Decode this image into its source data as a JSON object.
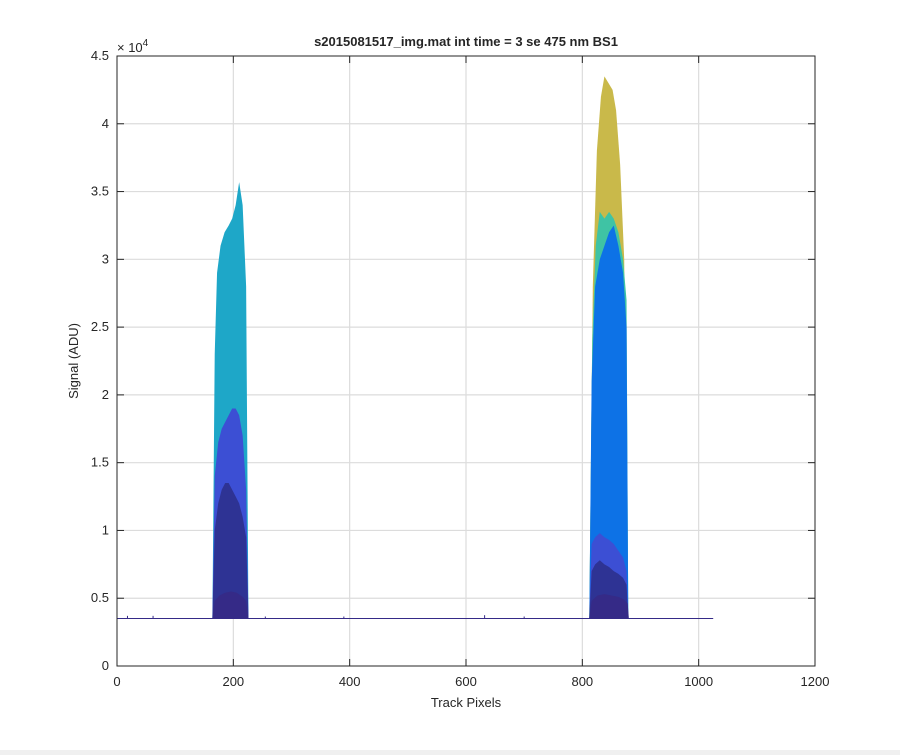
{
  "chart_data": {
    "type": "area",
    "title": "s2015081517_img.mat int time = 3 se  475 nm BS1",
    "xlabel": "Track Pixels",
    "ylabel": "Signal (ADU)",
    "xlim": [
      0,
      1200
    ],
    "ylim": [
      0,
      45000
    ],
    "xticks": [
      0,
      200,
      400,
      600,
      800,
      1000,
      1200
    ],
    "xtick_labels": [
      "0",
      "200",
      "400",
      "600",
      "800",
      "1000",
      "1200"
    ],
    "yticks": [
      0,
      5000,
      10000,
      15000,
      20000,
      25000,
      30000,
      35000,
      40000,
      45000
    ],
    "ytick_labels": [
      "0",
      "0.5",
      "1",
      "1.5",
      "2",
      "2.5",
      "3",
      "3.5",
      "4",
      "4.5"
    ],
    "y_multiplier": "× 10",
    "y_multiplier_exp": "4",
    "grid": true,
    "baseline": 3500,
    "baseline_x": [
      0,
      1025
    ],
    "series": [
      {
        "color": "#c9b94a",
        "peaks": [
          {
            "x": [
              812,
              818,
              825,
              832,
              838,
              845,
              852,
              858,
              865,
              872,
              878
            ],
            "y": [
              3500,
              28000,
              38000,
              42000,
              43500,
              43000,
              42500,
              41000,
              37000,
              30000,
              3500
            ]
          }
        ]
      },
      {
        "color": "#3fc3a4",
        "peaks": [
          {
            "x": [
              812,
              817,
              823,
              830,
              838,
              846,
              854,
              862,
              870,
              876,
              879
            ],
            "y": [
              3500,
              24000,
              31000,
              33500,
              33000,
              33500,
              33000,
              32000,
              30000,
              27000,
              3500
            ]
          }
        ]
      },
      {
        "color": "#1ea7c8",
        "peaks": [
          {
            "x": [
              164,
              168,
              172,
              178,
              185,
              192,
              198,
              204,
              210,
              216,
              222,
              226
            ],
            "y": [
              3500,
              23000,
              29000,
              31000,
              32000,
              32500,
              33000,
              34000,
              35700,
              34000,
              28000,
              3500
            ]
          }
        ]
      },
      {
        "color": "#0d72e6",
        "peaks": [
          {
            "x": [
              812,
              816,
              822,
              830,
              838,
              846,
              854,
              862,
              870,
              876,
              879
            ],
            "y": [
              3500,
              21000,
              28000,
              30000,
              31000,
              32000,
              32500,
              31000,
              29000,
              25000,
              3500
            ]
          }
        ]
      },
      {
        "color": "#3c4fd4",
        "peaks": [
          {
            "x": [
              164,
              168,
              174,
              180,
              186,
              192,
              198,
              204,
              210,
              216,
              222,
              226
            ],
            "y": [
              3500,
              14000,
              16500,
              17500,
              18000,
              18500,
              19000,
              19000,
              18500,
              17000,
              13000,
              3500
            ]
          },
          {
            "x": [
              812,
              816,
              822,
              830,
              838,
              846,
              854,
              862,
              870,
              876,
              879
            ],
            "y": [
              3500,
              9000,
              9500,
              9800,
              9500,
              9300,
              9000,
              8500,
              8000,
              7000,
              3500
            ]
          }
        ]
      },
      {
        "color": "#2e3394",
        "peaks": [
          {
            "x": [
              164,
              168,
              174,
              180,
              186,
              192,
              198,
              204,
              210,
              216,
              222,
              226
            ],
            "y": [
              3500,
              10000,
              12000,
              13000,
              13500,
              13500,
              13000,
              12500,
              12000,
              11000,
              9500,
              3500
            ]
          },
          {
            "x": [
              812,
              816,
              822,
              830,
              838,
              846,
              854,
              862,
              870,
              876,
              879
            ],
            "y": [
              3500,
              7000,
              7500,
              7800,
              7500,
              7300,
              7000,
              6800,
              6500,
              6000,
              3500
            ]
          }
        ]
      },
      {
        "color": "#352a87",
        "peaks": [
          {
            "x": [
              164,
              168,
              176,
              186,
              196,
              206,
              216,
              222,
              226
            ],
            "y": [
              3500,
              4800,
              5200,
              5400,
              5500,
              5400,
              5100,
              4800,
              3500
            ]
          },
          {
            "x": [
              812,
              816,
              826,
              838,
              850,
              862,
              872,
              878,
              880
            ],
            "y": [
              3500,
              4800,
              5200,
              5300,
              5200,
              5100,
              4900,
              4600,
              3500
            ]
          }
        ]
      }
    ],
    "spikes": [
      {
        "x": 18,
        "y": 3700
      },
      {
        "x": 62,
        "y": 3700
      },
      {
        "x": 255,
        "y": 3650
      },
      {
        "x": 390,
        "y": 3650
      },
      {
        "x": 632,
        "y": 3750
      },
      {
        "x": 700,
        "y": 3650
      }
    ]
  }
}
